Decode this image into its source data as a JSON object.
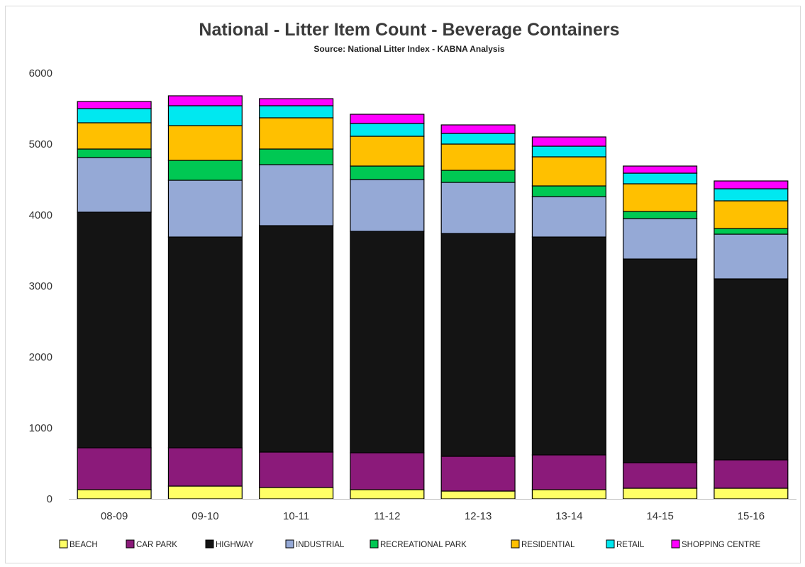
{
  "chart_data": {
    "type": "bar",
    "stacked": true,
    "title": "National - Litter Item Count - Beverage Containers",
    "subtitle": "Source: National Litter Index - KABNA Analysis",
    "categories": [
      "08-09",
      "09-10",
      "10-11",
      "11-12",
      "12-13",
      "13-14",
      "14-15",
      "15-16"
    ],
    "ylim": [
      0,
      6000
    ],
    "yticks": [
      "0",
      "1000",
      "2000",
      "3000",
      "4000",
      "5000",
      "6000"
    ],
    "grid": false,
    "legend_position": "bottom",
    "series": [
      {
        "name": "BEACH",
        "color": "#ffff66",
        "values": [
          130,
          180,
          160,
          130,
          110,
          130,
          150,
          150
        ]
      },
      {
        "name": "CAR PARK",
        "color": "#8b1a7a",
        "values": [
          590,
          540,
          500,
          520,
          490,
          490,
          360,
          400
        ]
      },
      {
        "name": "HIGHWAY",
        "color": "#141414",
        "values": [
          3320,
          2970,
          3190,
          3120,
          3140,
          3070,
          2870,
          2550
        ]
      },
      {
        "name": "INDUSTRIAL",
        "color": "#95a9d6",
        "values": [
          770,
          800,
          860,
          730,
          720,
          570,
          570,
          630
        ]
      },
      {
        "name": "RECREATIONAL PARK",
        "color": "#00c853",
        "values": [
          120,
          280,
          220,
          190,
          170,
          150,
          100,
          80
        ]
      },
      {
        "name": "RESIDENTIAL",
        "color": "#ffc000",
        "values": [
          370,
          490,
          440,
          420,
          370,
          410,
          390,
          390
        ]
      },
      {
        "name": "RETAIL",
        "color": "#00e8f0",
        "values": [
          200,
          280,
          170,
          180,
          150,
          150,
          150,
          170
        ]
      },
      {
        "name": "SHOPPING CENTRE",
        "color": "#ff00ff",
        "values": [
          100,
          140,
          100,
          130,
          120,
          130,
          100,
          110
        ]
      }
    ]
  }
}
